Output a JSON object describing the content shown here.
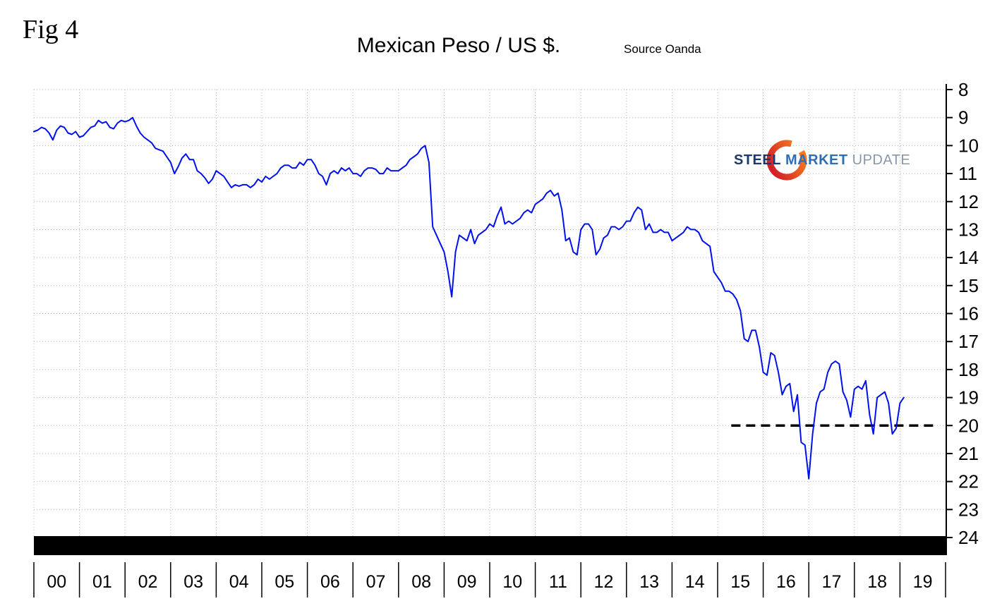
{
  "header": {
    "fig_label": "Fig 4",
    "title": "Mexican Peso / US $.",
    "source": "Source Oanda"
  },
  "logo": {
    "steel": "STEEL",
    "market": "MARKET",
    "update": "UPDATE",
    "steel_color": "#1a3a6b",
    "market_color": "#2f6eb5",
    "update_color": "#8a97ab",
    "ring_red": "#d42027",
    "ring_orange": "#f47b20"
  },
  "chart_data": {
    "type": "line",
    "title": "Mexican Peso / US $.",
    "source": "Source Oanda",
    "series_name": "Mexican Peso per US Dollar",
    "line_color": "#0010ee",
    "grid": "dotted",
    "grid_color": "#b5b5b5",
    "y_axis_side": "right",
    "y_inverted_depreciation_down": true,
    "ylim": [
      8,
      24
    ],
    "yticks": [
      8,
      9,
      10,
      11,
      12,
      13,
      14,
      15,
      16,
      17,
      18,
      19,
      20,
      21,
      22,
      23,
      24
    ],
    "xtick_labels": [
      "00",
      "01",
      "02",
      "03",
      "04",
      "05",
      "06",
      "07",
      "08",
      "09",
      "10",
      "11",
      "12",
      "13",
      "14",
      "15",
      "16",
      "17",
      "18",
      "19"
    ],
    "x_start_year": 2000,
    "x_step_years": 0.083333,
    "values": [
      9.5,
      9.45,
      9.35,
      9.4,
      9.55,
      9.8,
      9.45,
      9.3,
      9.35,
      9.55,
      9.6,
      9.5,
      9.7,
      9.65,
      9.5,
      9.35,
      9.3,
      9.1,
      9.2,
      9.15,
      9.35,
      9.4,
      9.2,
      9.1,
      9.15,
      9.1,
      9.0,
      9.3,
      9.55,
      9.7,
      9.8,
      9.9,
      10.1,
      10.15,
      10.2,
      10.4,
      10.6,
      11.0,
      10.75,
      10.45,
      10.3,
      10.5,
      10.5,
      10.9,
      11.0,
      11.15,
      11.35,
      11.2,
      10.9,
      11.0,
      11.1,
      11.3,
      11.5,
      11.4,
      11.45,
      11.4,
      11.4,
      11.5,
      11.4,
      11.2,
      11.3,
      11.1,
      11.2,
      11.1,
      11.0,
      10.8,
      10.7,
      10.7,
      10.8,
      10.8,
      10.6,
      10.7,
      10.5,
      10.5,
      10.7,
      11.0,
      11.1,
      11.4,
      11.0,
      10.9,
      11.0,
      10.8,
      10.9,
      10.8,
      11.0,
      11.0,
      11.1,
      10.9,
      10.8,
      10.8,
      10.85,
      11.0,
      11.0,
      10.8,
      10.9,
      10.9,
      10.9,
      10.8,
      10.7,
      10.5,
      10.4,
      10.3,
      10.1,
      10.0,
      10.6,
      12.9,
      13.2,
      13.5,
      13.8,
      14.5,
      15.4,
      13.8,
      13.2,
      13.3,
      13.4,
      13.0,
      13.5,
      13.2,
      13.1,
      13.0,
      12.8,
      12.9,
      12.5,
      12.2,
      12.8,
      12.7,
      12.8,
      12.7,
      12.6,
      12.4,
      12.3,
      12.4,
      12.1,
      12.0,
      11.9,
      11.7,
      11.6,
      11.8,
      11.7,
      12.3,
      13.4,
      13.3,
      13.8,
      13.9,
      13.0,
      12.8,
      12.8,
      13.0,
      13.9,
      13.7,
      13.3,
      13.2,
      12.9,
      12.9,
      13.0,
      12.9,
      12.7,
      12.7,
      12.4,
      12.2,
      12.3,
      13.0,
      12.8,
      13.1,
      13.1,
      13.0,
      13.1,
      13.1,
      13.4,
      13.3,
      13.2,
      13.1,
      12.9,
      13.0,
      13.0,
      13.1,
      13.4,
      13.5,
      13.6,
      14.5,
      14.7,
      14.9,
      15.2,
      15.2,
      15.3,
      15.5,
      15.9,
      16.9,
      17.0,
      16.6,
      16.6,
      17.2,
      18.1,
      18.2,
      17.4,
      17.5,
      18.1,
      18.9,
      18.6,
      18.5,
      19.5,
      18.9,
      20.6,
      20.7,
      21.9,
      20.3,
      19.2,
      18.8,
      18.7,
      18.1,
      17.8,
      17.7,
      17.8,
      18.8,
      19.1,
      19.7,
      18.7,
      18.6,
      18.7,
      18.4,
      19.6,
      20.3,
      19.0,
      18.9,
      18.8,
      19.2,
      20.3,
      20.1,
      19.2,
      19.0
    ],
    "reference_line": {
      "y": 20,
      "x_start_year": 2015.3,
      "x_end_year": 2019.85,
      "style": "dashed",
      "color": "#000000"
    }
  }
}
